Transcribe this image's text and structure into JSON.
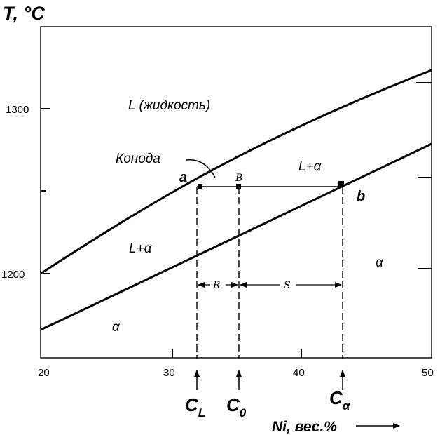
{
  "axes": {
    "y_title": "T, °C",
    "x_title": "Ni, вес.%",
    "x_ticks": [
      "20",
      "30",
      "40",
      "50"
    ],
    "y_ticks": [
      "1300",
      "1200"
    ]
  },
  "labels": {
    "liquid": "L (жидкость)",
    "konoda": "Конода",
    "two_phase_upper": "L+α",
    "two_phase_lower": "L+α",
    "alpha_left": "α",
    "alpha_right": "α",
    "point_a": "a",
    "point_b": "b",
    "point_B": "B",
    "seg_R": "R",
    "seg_S": "S",
    "c_l_main": "C",
    "c_l_sub": "L",
    "c_0_main": "C",
    "c_0_sub": "0",
    "c_alpha_main": "C",
    "c_alpha_sub": "α"
  },
  "chart_data": {
    "type": "line",
    "x_range": [
      20,
      50
    ],
    "y_range": [
      1150,
      1330
    ],
    "series": [
      {
        "x": [
          20,
          25,
          30,
          35,
          40,
          45,
          50
        ],
        "y": [
          1200,
          1228,
          1255,
          1277,
          1296,
          1311,
          1322
        ]
      },
      {
        "x": [
          20,
          25,
          30,
          35,
          40,
          45,
          50
        ],
        "y": [
          1165,
          1186,
          1207,
          1228,
          1248,
          1264,
          1280
        ]
      }
    ],
    "tie_line": {
      "T": 1255,
      "C_L": 31.5,
      "C_0": 35,
      "C_alpha": 43
    }
  }
}
